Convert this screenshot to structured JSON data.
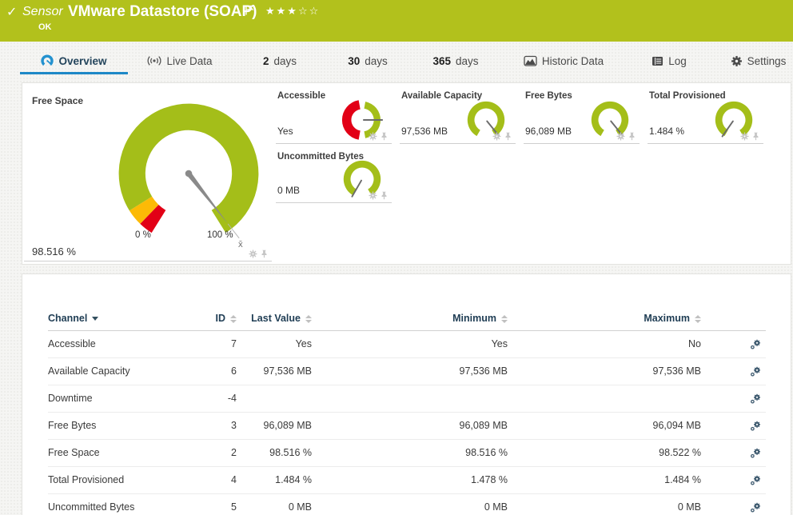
{
  "header": {
    "check_icon": "✓",
    "type_label": "Sensor",
    "title": "VMware Datastore (SOAP)",
    "status": "OK",
    "stars": "★★★☆☆",
    "priority_stars_filled": 3,
    "priority_stars_total": 5
  },
  "tabs": {
    "overview": "Overview",
    "live_data": "Live Data",
    "d2_num": "2",
    "d2_word": "days",
    "d30_num": "30",
    "d30_word": "days",
    "d365_num": "365",
    "d365_word": "days",
    "historic": "Historic Data",
    "log": "Log",
    "settings": "Settings"
  },
  "gauges": {
    "free_space": {
      "label": "Free Space",
      "value": "98.516 %",
      "percent": 98.516,
      "min_label": "0 %",
      "max_label": "100 %",
      "mean_label": "x̄",
      "needle_deg": 142
    },
    "accessible": {
      "label": "Accessible",
      "value": "Yes",
      "needle_deg": 90
    },
    "available_capacity": {
      "label": "Available Capacity",
      "value": "97,536 MB",
      "needle_deg": 141
    },
    "free_bytes": {
      "label": "Free Bytes",
      "value": "96,089 MB",
      "needle_deg": 141
    },
    "total_provisioned": {
      "label": "Total Provisioned",
      "value": "1.484 %",
      "needle_deg": 215
    },
    "uncommitted_bytes": {
      "label": "Uncommitted Bytes",
      "value": "0 MB",
      "needle_deg": 210
    }
  },
  "table": {
    "headers": {
      "channel": "Channel",
      "id": "ID",
      "last": "Last Value",
      "min": "Minimum",
      "max": "Maximum"
    },
    "rows": [
      {
        "channel": "Accessible",
        "id": "7",
        "last": "Yes",
        "min": "Yes",
        "max": "No"
      },
      {
        "channel": "Available Capacity",
        "id": "6",
        "last": "97,536 MB",
        "min": "97,536 MB",
        "max": "97,536 MB"
      },
      {
        "channel": "Downtime",
        "id": "-4",
        "last": "",
        "min": "",
        "max": ""
      },
      {
        "channel": "Free Bytes",
        "id": "3",
        "last": "96,089 MB",
        "min": "96,089 MB",
        "max": "96,094 MB"
      },
      {
        "channel": "Free Space",
        "id": "2",
        "last": "98.516 %",
        "min": "98.516 %",
        "max": "98.522 %"
      },
      {
        "channel": "Total Provisioned",
        "id": "4",
        "last": "1.484 %",
        "min": "1.478 %",
        "max": "1.484 %"
      },
      {
        "channel": "Uncommitted Bytes",
        "id": "5",
        "last": "0 MB",
        "min": "0 MB",
        "max": "0 MB"
      }
    ]
  },
  "colors": {
    "header_bg": "#b2c11c",
    "gauge_green": "#a4be19",
    "gauge_orange": "#fcba06",
    "gauge_red": "#e20016",
    "active_tab_underline": "#1e88c7",
    "table_header_text": "#1f3d54"
  }
}
